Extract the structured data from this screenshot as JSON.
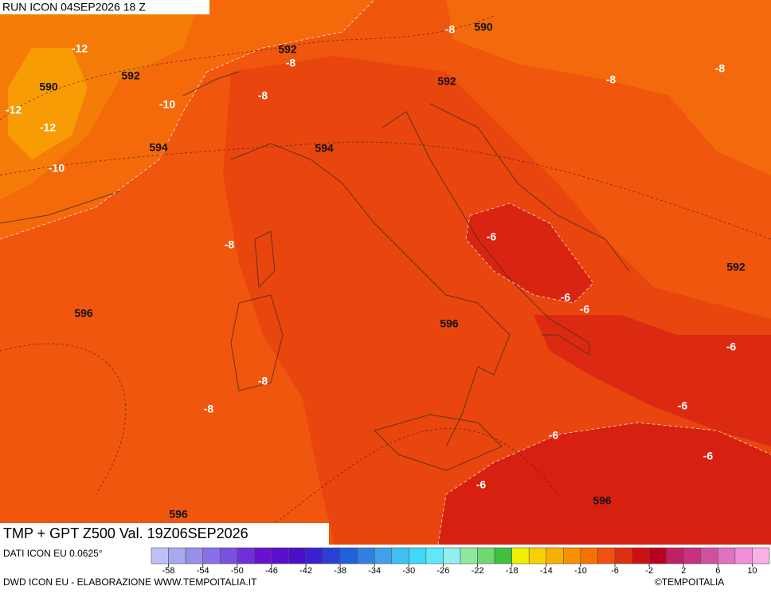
{
  "header": {
    "run": "RUN ICON 04SEP2026 18 Z",
    "field": "TMP + GPT Z500 Val. 19Z06SEP2026"
  },
  "footer": {
    "source": "DATI ICON EU 0.0625°",
    "credit": "DWD ICON EU - ELABORAZIONE WWW.TEMPOITALIA.IT",
    "copyright": "©TEMPOITALIA"
  },
  "colorbar": {
    "labels": [
      -58,
      -54,
      -50,
      -46,
      -42,
      -38,
      -34,
      -30,
      -26,
      -22,
      -18,
      -14,
      -10,
      -6,
      -2,
      2,
      6,
      10
    ],
    "colors": [
      "#c0c0f8",
      "#a8a8f0",
      "#9890e8",
      "#8a70e8",
      "#7a50e0",
      "#7030d8",
      "#6a10d0",
      "#5a10c8",
      "#4a10c8",
      "#3c20d0",
      "#2840d8",
      "#2060e0",
      "#3080e0",
      "#40a0e8",
      "#40c0f0",
      "#40d8f8",
      "#60e8f8",
      "#90f0f0",
      "#90e8a0",
      "#70d870",
      "#40c040",
      "#f0f000",
      "#f8d000",
      "#f8b000",
      "#f89000",
      "#f87000",
      "#f05010",
      "#e03010",
      "#d01010",
      "#b80020",
      "#c02060",
      "#c83080",
      "#d050a0",
      "#e070c0",
      "#f090d8",
      "#f8b0e8"
    ]
  },
  "contour_labels": {
    "temperature": [
      -8,
      -12,
      -8,
      -10,
      -12,
      -12,
      -8,
      -8,
      -8,
      -10,
      -8,
      -6,
      -6,
      -6,
      -6,
      -8,
      -8,
      -6,
      -6,
      -6,
      -6
    ],
    "geopotential": [
      590,
      592,
      592,
      590,
      592,
      594,
      594,
      592,
      596,
      596,
      596,
      596
    ]
  }
}
